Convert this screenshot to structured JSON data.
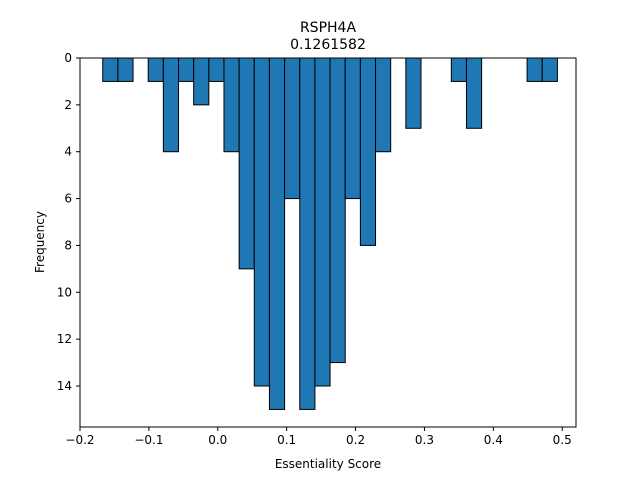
{
  "chart_data": {
    "type": "bar",
    "title": "RSPH4A",
    "subtitle": "0.1261582",
    "xlabel": "Essentiality Score",
    "ylabel": "Frequency",
    "xlim": [
      -0.2,
      0.52
    ],
    "ylim": [
      0,
      15.75
    ],
    "y_inverted": true,
    "x_ticks": [
      -0.2,
      -0.1,
      0.0,
      0.1,
      0.2,
      0.3,
      0.4,
      0.5
    ],
    "x_tick_labels": [
      "−0.2",
      "−0.1",
      "0.0",
      "0.1",
      "0.2",
      "0.3",
      "0.4",
      "0.5"
    ],
    "y_ticks": [
      0,
      2,
      4,
      6,
      8,
      10,
      12,
      14
    ],
    "y_tick_labels": [
      "0",
      "2",
      "4",
      "6",
      "8",
      "10",
      "12",
      "14"
    ],
    "bin_width": 0.022,
    "bin_starts": [
      -0.167,
      -0.145,
      -0.123,
      -0.101,
      -0.079,
      -0.057,
      -0.035,
      -0.013,
      0.009,
      0.031,
      0.053,
      0.075,
      0.097,
      0.119,
      0.141,
      0.163,
      0.185,
      0.207,
      0.229,
      0.251,
      0.273,
      0.295,
      0.317,
      0.339,
      0.361,
      0.383,
      0.405,
      0.427,
      0.449,
      0.471
    ],
    "values": [
      1,
      1,
      0,
      1,
      4,
      1,
      2,
      1,
      4,
      9,
      14,
      15,
      6,
      15,
      14,
      13,
      6,
      8,
      4,
      0,
      3,
      0,
      0,
      1,
      3,
      0,
      0,
      0,
      1,
      1
    ],
    "bar_color": "#1f77b4",
    "edge_color": "#000000",
    "grid": false
  }
}
